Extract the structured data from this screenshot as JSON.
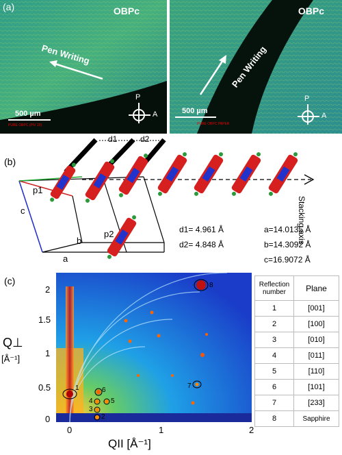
{
  "panel_a": {
    "label": "(a)",
    "left": {
      "title": "OBPc",
      "writing": "Pen Writing",
      "scale": "500 µm",
      "tiny": "PURE OBPC (PIV 20)",
      "p": "P",
      "a": "A"
    },
    "right": {
      "title": "OBPc",
      "writing": "Pen Writing",
      "scale": "500 µm",
      "tiny": "PURE OBPC PAPER",
      "p": "P",
      "a": "A"
    }
  },
  "panel_b": {
    "label": "(b)",
    "stacking_axis": "Stacking axis",
    "d1_top": "d1",
    "d2_top": "d2",
    "p1": "p1",
    "p2": "p2",
    "axis_a": "a",
    "axis_b": "b",
    "axis_c": "c",
    "d1_value": "d1= 4.961 Å",
    "d2_value": "d2= 4.848 Å",
    "a_value": "a=14.0135 Å",
    "b_value": "b=14.3092 Å",
    "c_value": "c=16.9072 Å"
  },
  "panel_c": {
    "label": "(c)",
    "ylabel_main": "Q⊥",
    "ylabel_unit": "[Å⁻¹]",
    "xlabel": "QII [Å⁻¹]",
    "y_ticks": [
      "2",
      "1.5",
      "1",
      "0.5",
      "0"
    ],
    "x_ticks": [
      "0",
      "1",
      "2"
    ],
    "spot_labels": [
      "1",
      "2",
      "3",
      "4",
      "5",
      "6",
      "7",
      "8"
    ],
    "table": {
      "header_col1": "Reflection number",
      "header_col2": "Plane",
      "rows": [
        {
          "n": "1",
          "plane": "[001]"
        },
        {
          "n": "2",
          "plane": "[100]"
        },
        {
          "n": "3",
          "plane": "[010]"
        },
        {
          "n": "4",
          "plane": "[011]"
        },
        {
          "n": "5",
          "plane": "[110]"
        },
        {
          "n": "6",
          "plane": "[101]"
        },
        {
          "n": "7",
          "plane": "[233]"
        },
        {
          "n": "8",
          "plane": "Sapphire"
        }
      ]
    }
  }
}
